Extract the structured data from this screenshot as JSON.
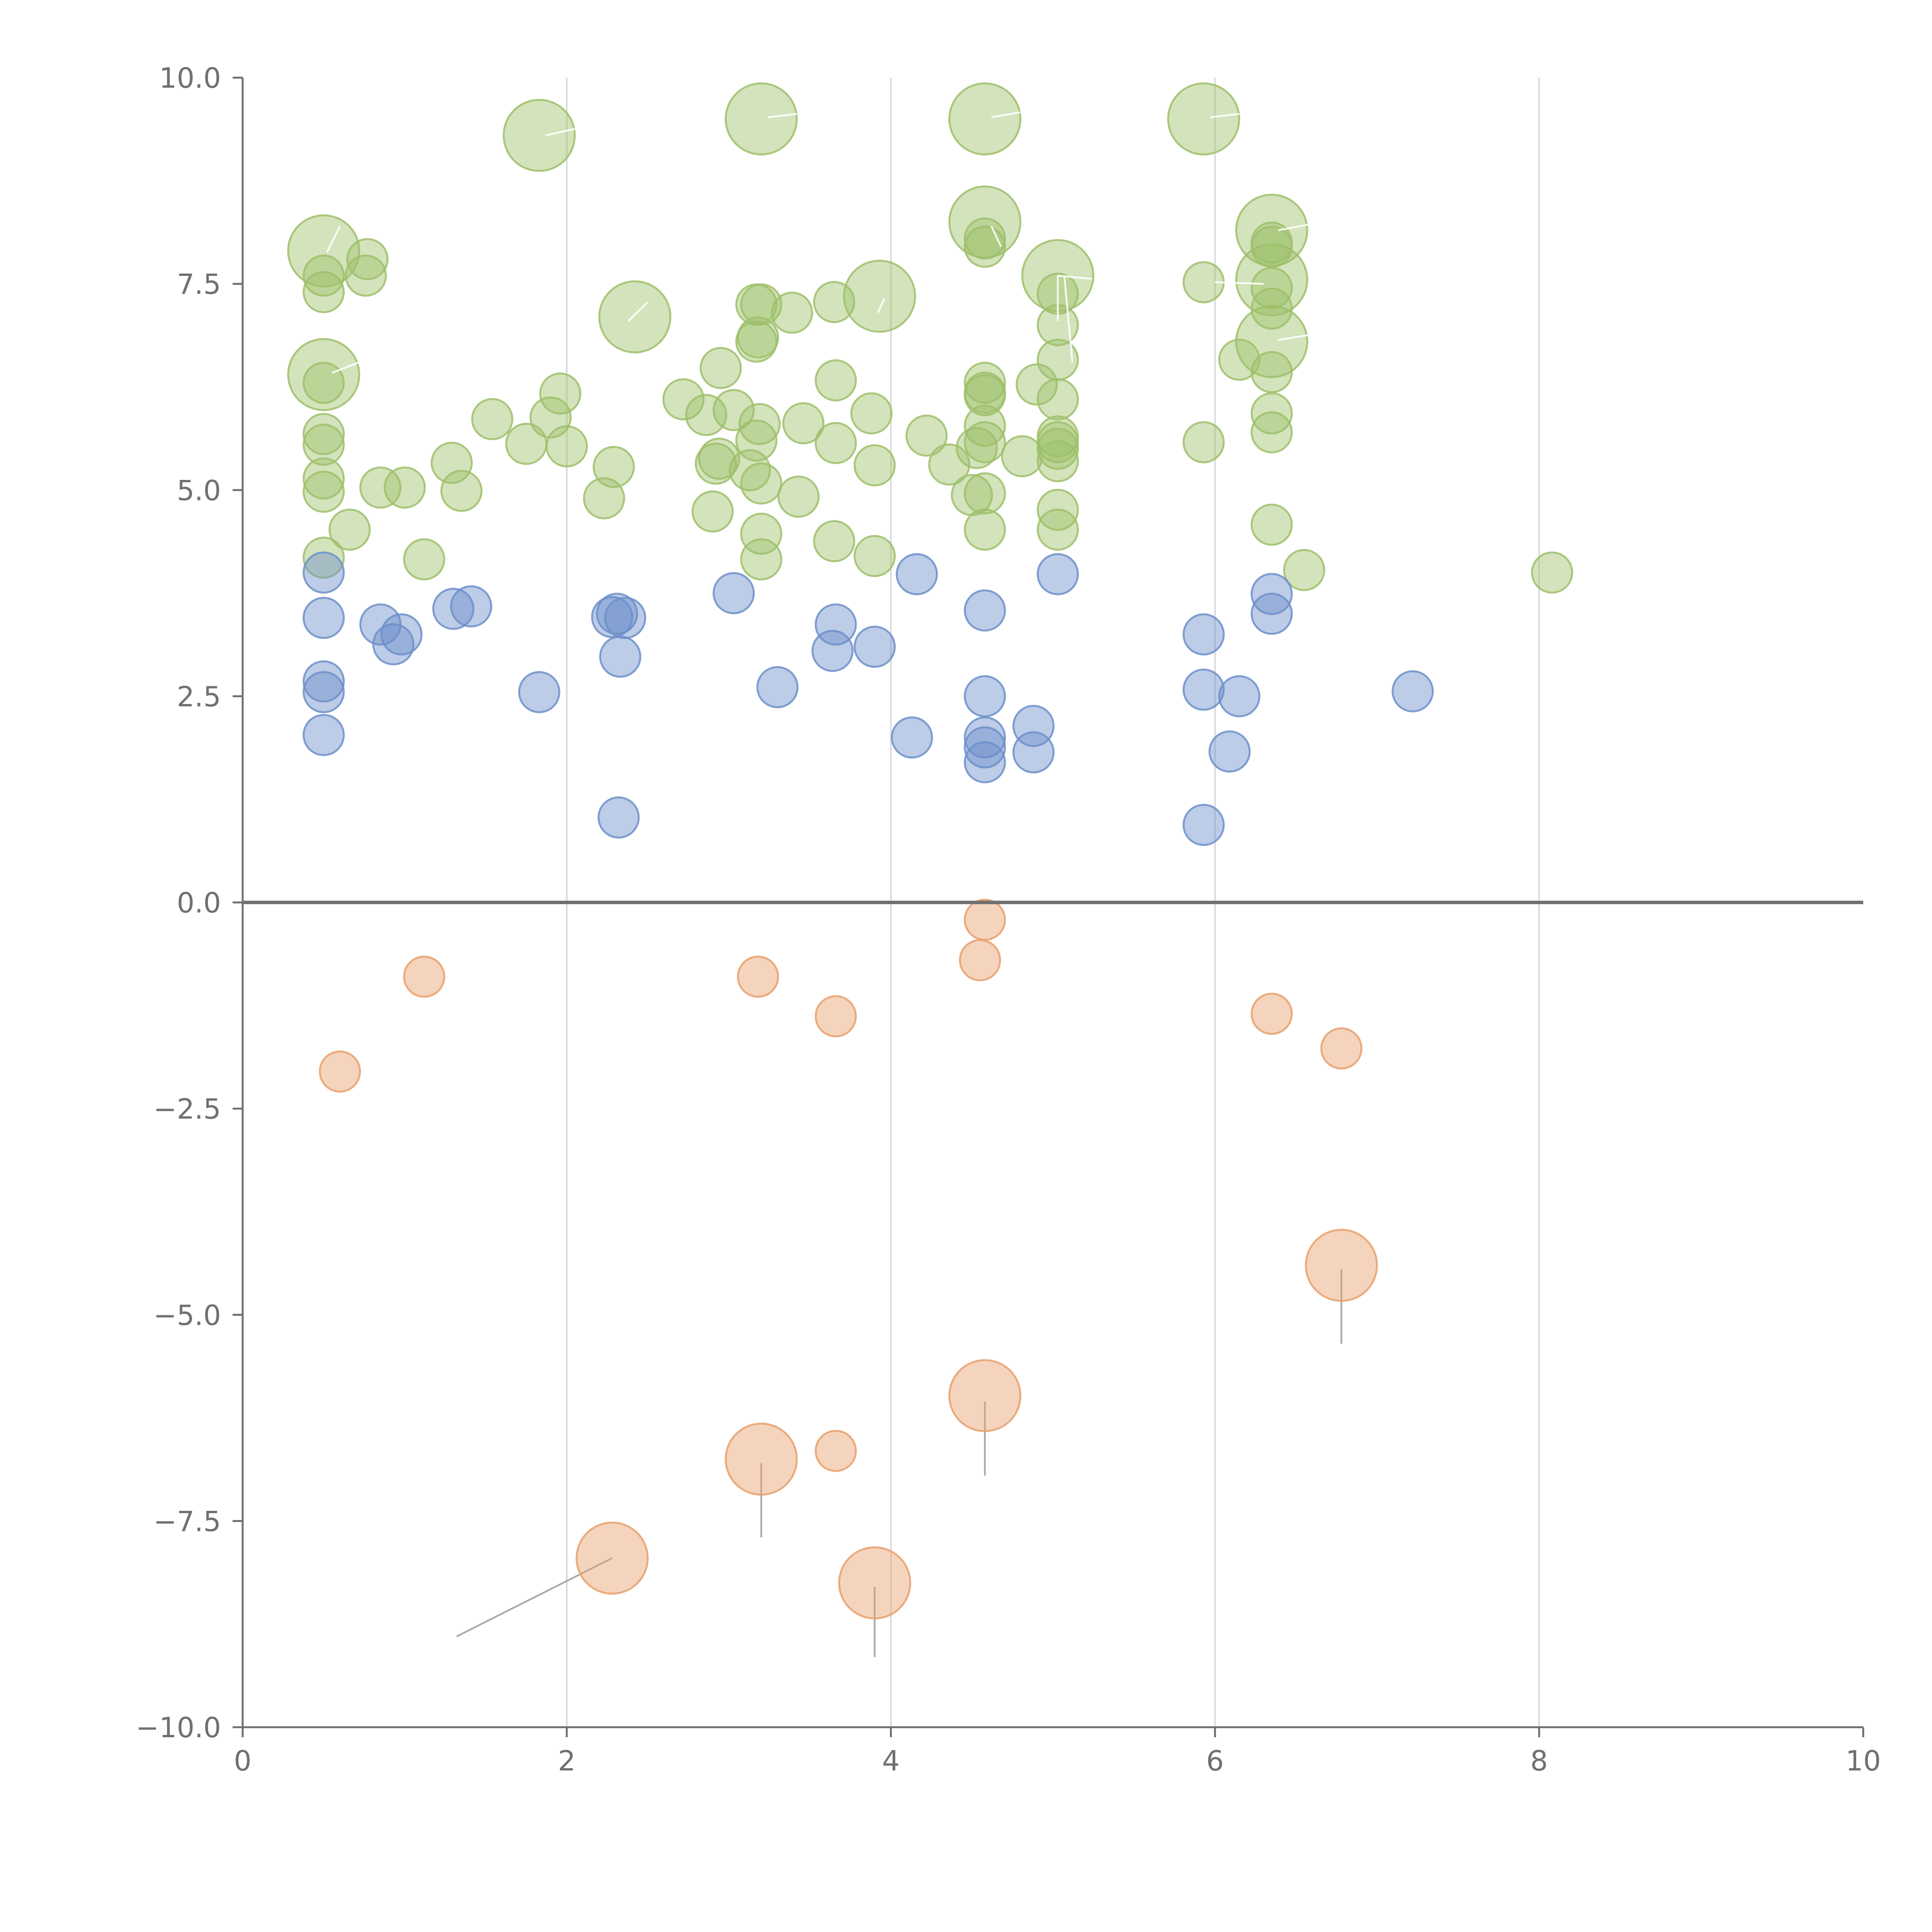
{
  "chart_data": {
    "type": "scatter",
    "title": "",
    "xlabel": "",
    "ylabel": "",
    "xlim": [
      0,
      10
    ],
    "ylim": [
      -10,
      10
    ],
    "x_ticks": [
      "0",
      "2",
      "4",
      "6",
      "8",
      "10"
    ],
    "y_ticks": [
      "−10.0",
      "−7.5",
      "−5.0",
      "−2.5",
      "0.0",
      "2.5",
      "5.0",
      "7.5",
      "10.0"
    ],
    "grid": "vertical",
    "zero_line": true,
    "colors": {
      "green": "#9dc06a",
      "blue": "#6c8fca",
      "orange": "#e8a06c",
      "callout_light": "#ffffff",
      "callout_dark": "#9a9a9a"
    },
    "series": [
      {
        "color": "green",
        "points": [
          [
            0.5,
            7.9,
            "L"
          ],
          [
            0.5,
            6.4,
            "L"
          ],
          [
            1.83,
            9.3,
            "L"
          ],
          [
            3.2,
            9.5,
            "L"
          ],
          [
            4.58,
            9.5,
            "L"
          ],
          [
            5.93,
            9.5,
            "L"
          ],
          [
            4.58,
            8.25,
            "L"
          ],
          [
            6.35,
            8.15,
            "L"
          ],
          [
            5.03,
            7.6,
            "L"
          ],
          [
            6.35,
            7.55,
            "L"
          ],
          [
            2.42,
            7.1,
            "L"
          ],
          [
            3.93,
            7.35,
            "L"
          ],
          [
            6.35,
            6.8,
            "L"
          ],
          [
            0.5,
            7.6
          ],
          [
            0.5,
            7.4
          ],
          [
            0.77,
            7.8
          ],
          [
            0.76,
            7.6
          ],
          [
            0.5,
            6.3
          ],
          [
            0.5,
            5.68
          ],
          [
            0.5,
            5.55
          ],
          [
            0.5,
            5.14
          ],
          [
            0.5,
            4.98
          ],
          [
            0.5,
            4.18
          ],
          [
            0.66,
            4.52
          ],
          [
            0.85,
            5.03
          ],
          [
            1.0,
            5.03
          ],
          [
            1.12,
            4.16
          ],
          [
            1.29,
            5.33
          ],
          [
            1.35,
            4.99
          ],
          [
            1.54,
            5.86
          ],
          [
            1.75,
            5.56
          ],
          [
            1.9,
            5.88
          ],
          [
            1.96,
            6.17
          ],
          [
            2.0,
            5.53
          ],
          [
            2.23,
            4.9
          ],
          [
            2.29,
            5.28
          ],
          [
            2.72,
            6.1
          ],
          [
            2.86,
            5.91
          ],
          [
            2.9,
            4.74
          ],
          [
            2.92,
            5.32
          ],
          [
            2.94,
            5.38
          ],
          [
            2.95,
            6.48
          ],
          [
            3.03,
            5.97
          ],
          [
            3.13,
            5.24
          ],
          [
            3.17,
            5.6
          ],
          [
            3.19,
            5.8
          ],
          [
            3.2,
            5.08
          ],
          [
            3.2,
            4.47
          ],
          [
            3.2,
            4.16
          ],
          [
            3.17,
            6.8
          ],
          [
            3.18,
            6.85
          ],
          [
            3.2,
            7.25
          ],
          [
            3.17,
            7.25
          ],
          [
            3.39,
            7.15
          ],
          [
            3.43,
            4.92
          ],
          [
            3.46,
            5.81
          ],
          [
            3.65,
            4.38
          ],
          [
            3.66,
            5.57
          ],
          [
            3.66,
            6.33
          ],
          [
            3.65,
            7.28
          ],
          [
            3.88,
            5.93
          ],
          [
            3.9,
            5.3
          ],
          [
            3.9,
            4.2
          ],
          [
            4.22,
            5.66
          ],
          [
            4.36,
            5.31
          ],
          [
            4.5,
            4.94
          ],
          [
            4.53,
            5.51
          ],
          [
            4.58,
            4.96
          ],
          [
            4.58,
            4.52
          ],
          [
            4.58,
            5.58
          ],
          [
            4.58,
            5.78
          ],
          [
            4.58,
            6.15
          ],
          [
            4.58,
            6.18
          ],
          [
            4.58,
            6.3
          ],
          [
            4.58,
            7.95
          ],
          [
            4.58,
            8.05
          ],
          [
            4.81,
            5.41
          ],
          [
            4.9,
            6.28
          ],
          [
            5.03,
            4.52
          ],
          [
            5.03,
            4.76
          ],
          [
            5.03,
            5.35
          ],
          [
            5.03,
            5.5
          ],
          [
            5.03,
            5.58
          ],
          [
            5.03,
            5.65
          ],
          [
            5.03,
            6.1
          ],
          [
            5.03,
            6.58
          ],
          [
            5.03,
            7.0
          ],
          [
            5.03,
            7.38
          ],
          [
            5.93,
            5.58
          ],
          [
            5.93,
            7.52
          ],
          [
            6.15,
            6.58
          ],
          [
            6.35,
            4.58
          ],
          [
            6.35,
            5.7
          ],
          [
            6.35,
            5.93
          ],
          [
            6.35,
            6.43
          ],
          [
            6.35,
            7.2
          ],
          [
            6.35,
            7.45
          ],
          [
            6.35,
            7.95
          ],
          [
            6.35,
            8.0
          ],
          [
            6.55,
            4.03
          ],
          [
            8.08,
            4.0
          ]
        ]
      },
      {
        "color": "blue",
        "points": [
          [
            0.5,
            4.0
          ],
          [
            0.5,
            3.45
          ],
          [
            0.5,
            2.68
          ],
          [
            0.5,
            2.55
          ],
          [
            0.5,
            2.03
          ],
          [
            0.85,
            3.37
          ],
          [
            0.93,
            3.13
          ],
          [
            0.98,
            3.25
          ],
          [
            1.3,
            3.56
          ],
          [
            1.41,
            3.59
          ],
          [
            1.83,
            2.55
          ],
          [
            2.28,
            3.46
          ],
          [
            2.31,
            3.5
          ],
          [
            2.36,
            3.45
          ],
          [
            2.33,
            2.98
          ],
          [
            2.32,
            1.03
          ],
          [
            3.03,
            3.75
          ],
          [
            3.3,
            2.61
          ],
          [
            3.64,
            3.05
          ],
          [
            3.66,
            3.37
          ],
          [
            3.9,
            3.1
          ],
          [
            4.13,
            2.0
          ],
          [
            4.16,
            3.98
          ],
          [
            4.58,
            3.54
          ],
          [
            4.58,
            2.5
          ],
          [
            4.58,
            2.0
          ],
          [
            4.58,
            1.88
          ],
          [
            4.58,
            1.7
          ],
          [
            4.88,
            2.14
          ],
          [
            4.88,
            1.82
          ],
          [
            5.03,
            3.98
          ],
          [
            5.93,
            3.25
          ],
          [
            5.93,
            2.58
          ],
          [
            5.93,
            0.94
          ],
          [
            6.09,
            1.83
          ],
          [
            6.15,
            2.5
          ],
          [
            6.35,
            3.74
          ],
          [
            6.35,
            3.5
          ],
          [
            7.22,
            2.56
          ]
        ]
      },
      {
        "color": "orange",
        "points": [
          [
            0.6,
            -2.05
          ],
          [
            1.12,
            -0.9
          ],
          [
            3.18,
            -0.9
          ],
          [
            3.66,
            -1.38
          ],
          [
            4.55,
            -0.7
          ],
          [
            4.58,
            -0.21
          ],
          [
            6.35,
            -1.35
          ],
          [
            6.78,
            -1.77
          ],
          [
            3.66,
            -6.65
          ],
          [
            2.28,
            -7.95,
            "L"
          ],
          [
            3.2,
            -6.75,
            "L"
          ],
          [
            3.9,
            -8.25,
            "L"
          ],
          [
            4.58,
            -5.98,
            "L"
          ],
          [
            6.78,
            -4.4,
            "L"
          ]
        ]
      }
    ],
    "callouts": [
      {
        "x1": 2.28,
        "y1": -7.95,
        "x2": 1.32,
        "y2": -8.9,
        "color": "callout_dark"
      },
      {
        "x1": 3.2,
        "y1": -6.8,
        "x2": 3.2,
        "y2": -7.7,
        "color": "callout_dark"
      },
      {
        "x1": 3.9,
        "y1": -8.3,
        "x2": 3.9,
        "y2": -9.15,
        "color": "callout_dark"
      },
      {
        "x1": 4.58,
        "y1": -6.05,
        "x2": 4.58,
        "y2": -6.95,
        "color": "callout_dark"
      },
      {
        "x1": 6.78,
        "y1": -4.45,
        "x2": 6.78,
        "y2": -5.35,
        "color": "callout_dark"
      },
      {
        "x1": 1.87,
        "y1": 9.3,
        "x2": 2.05,
        "y2": 9.38,
        "color": "callout_light"
      },
      {
        "x1": 3.24,
        "y1": 9.52,
        "x2": 3.42,
        "y2": 9.56,
        "color": "callout_light"
      },
      {
        "x1": 4.62,
        "y1": 9.52,
        "x2": 4.8,
        "y2": 9.58,
        "color": "callout_light"
      },
      {
        "x1": 5.97,
        "y1": 9.52,
        "x2": 6.15,
        "y2": 9.56,
        "color": "callout_light"
      },
      {
        "x1": 0.52,
        "y1": 7.88,
        "x2": 0.6,
        "y2": 8.2,
        "color": "callout_light"
      },
      {
        "x1": 0.55,
        "y1": 6.42,
        "x2": 0.72,
        "y2": 6.55,
        "color": "callout_light"
      },
      {
        "x1": 2.38,
        "y1": 7.05,
        "x2": 2.5,
        "y2": 7.28,
        "color": "callout_light"
      },
      {
        "x1": 3.96,
        "y1": 7.32,
        "x2": 3.92,
        "y2": 7.15,
        "color": "callout_light"
      },
      {
        "x1": 4.62,
        "y1": 8.2,
        "x2": 4.68,
        "y2": 7.95,
        "color": "callout_light"
      },
      {
        "x1": 5.03,
        "y1": 7.6,
        "x2": 5.03,
        "y2": 7.05,
        "color": "callout_light"
      },
      {
        "x1": 5.07,
        "y1": 7.6,
        "x2": 5.12,
        "y2": 6.55,
        "color": "callout_light"
      },
      {
        "x1": 5.03,
        "y1": 7.6,
        "x2": 5.24,
        "y2": 7.56,
        "color": "callout_light"
      },
      {
        "x1": 6.39,
        "y1": 8.15,
        "x2": 6.58,
        "y2": 8.22,
        "color": "callout_light"
      },
      {
        "x1": 6.39,
        "y1": 6.82,
        "x2": 6.58,
        "y2": 6.88,
        "color": "callout_light"
      },
      {
        "x1": 6.0,
        "y1": 7.52,
        "x2": 6.3,
        "y2": 7.5,
        "color": "callout_light"
      }
    ]
  }
}
